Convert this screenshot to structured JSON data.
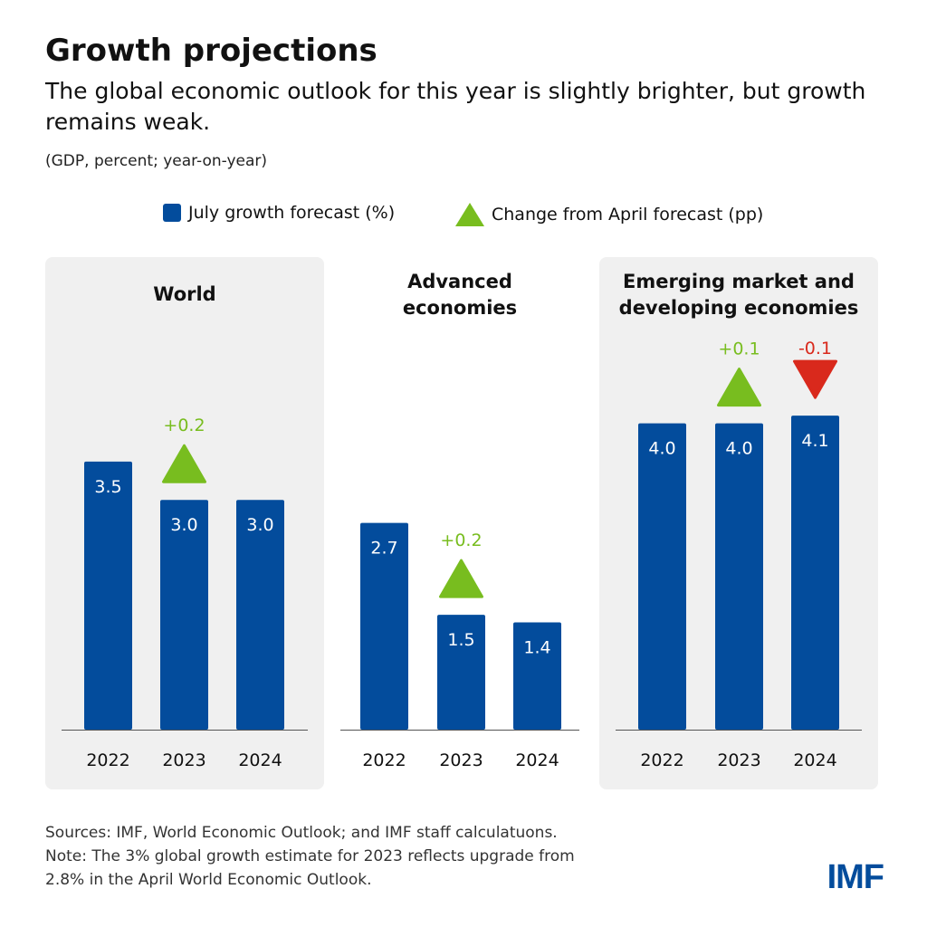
{
  "title": "Growth projections",
  "subtitle": "The global economic outlook for this year is slightly brighter, but growth remains weak.",
  "unit_note": "(GDP, percent; year-on-year)",
  "footer": {
    "sources": "Sources: IMF, World Economic Outlook; and IMF staff calculatuons.",
    "note_line1": "Note: The 3% global growth estimate for 2023 reflects upgrade from",
    "note_line2": "2.8% in the April World Economic Outlook.",
    "logo": "IMF"
  },
  "colors": {
    "bar": "#034c9c",
    "up": "#78bd1f",
    "down": "#d9291c",
    "panel": "#f0f0f0"
  },
  "chart_data": {
    "type": "bar",
    "legend": {
      "placement": "top",
      "entries": [
        "July growth forecast (%)",
        "Change from April forecast (pp)"
      ]
    },
    "categories": [
      "2022",
      "2023",
      "2024"
    ],
    "panels": [
      {
        "title_lines": [
          "World"
        ],
        "values": [
          3.5,
          3.0,
          3.0
        ],
        "changes": [
          null,
          0.2,
          null
        ],
        "change_labels": [
          "",
          "+0.2",
          ""
        ],
        "value_labels": [
          "3.5",
          "3.0",
          "3.0"
        ],
        "shaded": true
      },
      {
        "title_lines": [
          "Advanced",
          "economies"
        ],
        "values": [
          2.7,
          1.5,
          1.4
        ],
        "changes": [
          null,
          0.2,
          null
        ],
        "change_labels": [
          "",
          "+0.2",
          ""
        ],
        "value_labels": [
          "2.7",
          "1.5",
          "1.4"
        ],
        "shaded": false
      },
      {
        "title_lines": [
          "Emerging market and",
          "developing economies"
        ],
        "values": [
          4.0,
          4.0,
          4.1
        ],
        "changes": [
          null,
          0.1,
          -0.1
        ],
        "change_labels": [
          "",
          "+0.1",
          "-0.1"
        ],
        "value_labels": [
          "4.0",
          "4.0",
          "4.1"
        ],
        "shaded": true
      }
    ]
  }
}
